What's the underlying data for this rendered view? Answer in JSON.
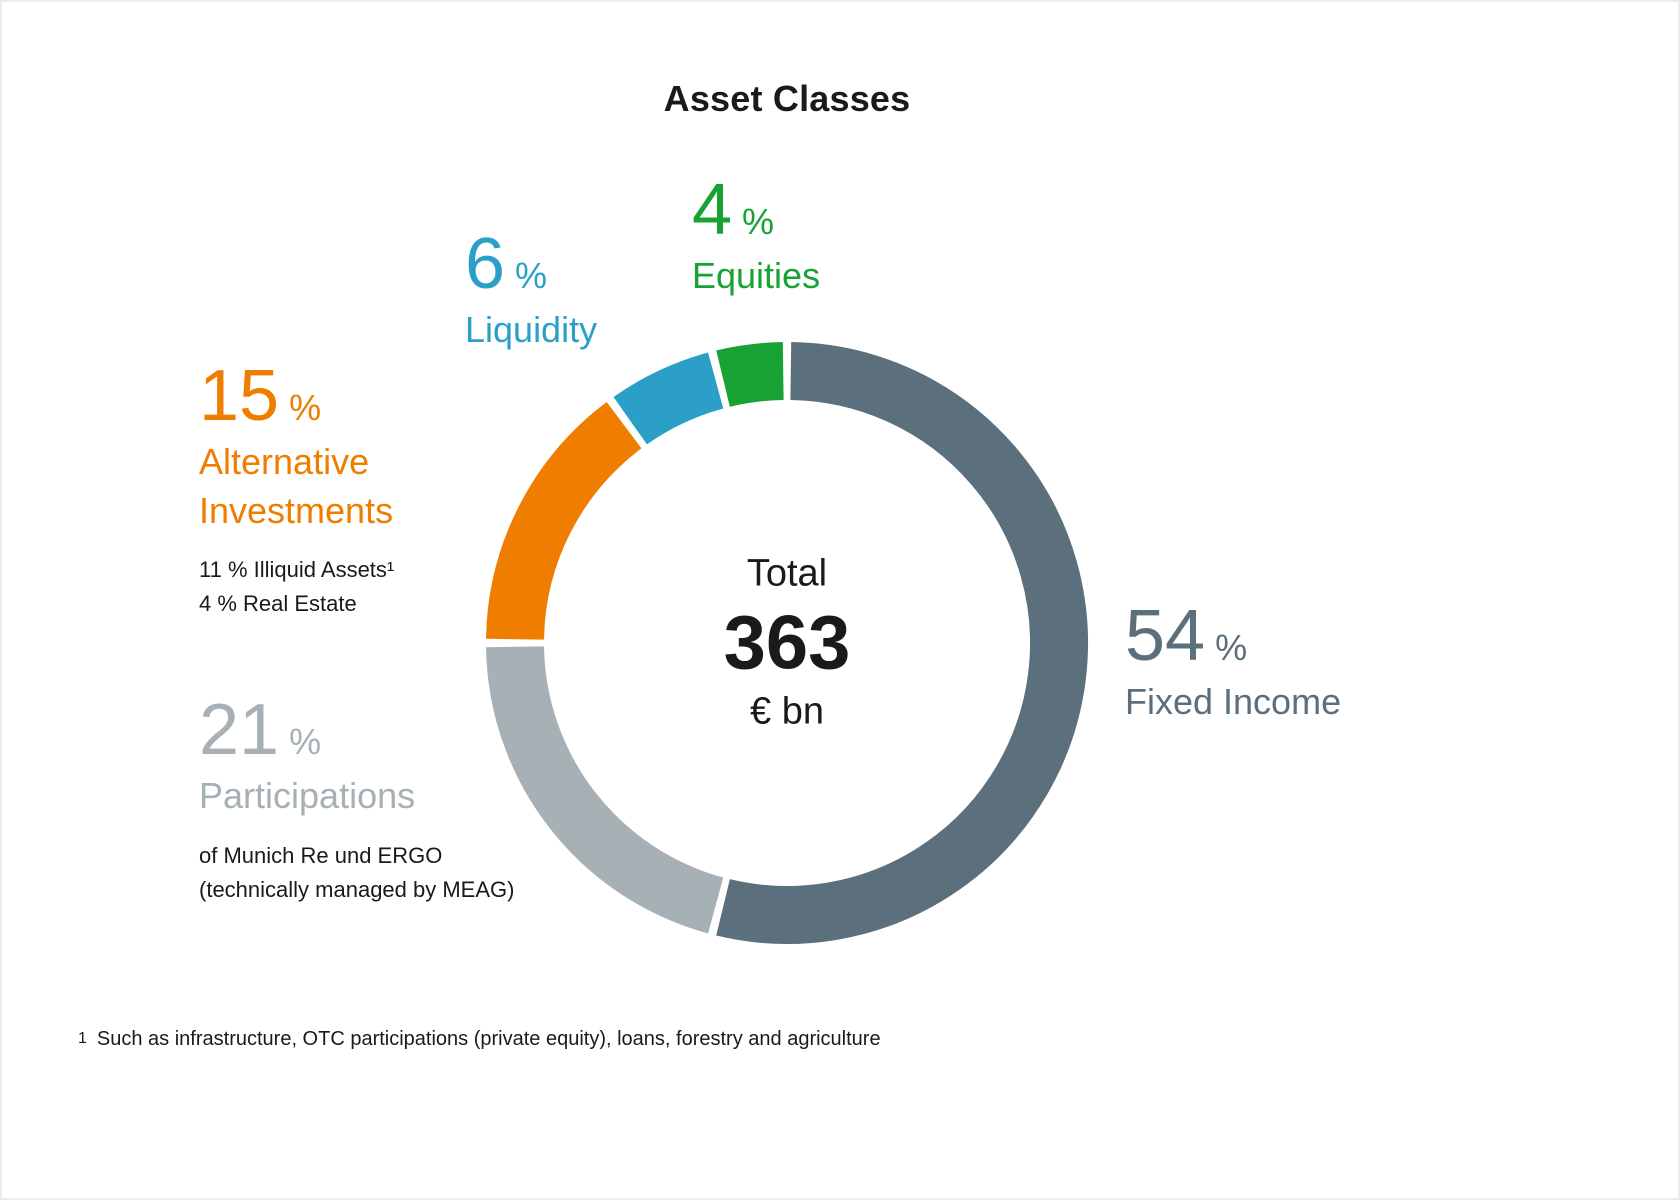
{
  "page": {
    "title": "Asset Classes"
  },
  "annotations": {
    "equities": {
      "value": "4",
      "percent_sign": "%",
      "label": "Equities"
    },
    "liquidity": {
      "value": "6",
      "percent_sign": "%",
      "label": "Liquidity"
    },
    "alternative": {
      "value": "15",
      "percent_sign": "%",
      "label_line1": "Alternative",
      "label_line2": "Investments",
      "sub1": "11 % Illiquid Assets¹",
      "sub2": "4 %  Real Estate"
    },
    "participations": {
      "value": "21",
      "percent_sign": "%",
      "label": "Participations",
      "sub1": "of Munich Re und ERGO",
      "sub2": "(technically managed by MEAG)"
    },
    "fixed_income": {
      "value": "54",
      "percent_sign": "%",
      "label": "Fixed Income"
    }
  },
  "center": {
    "label": "Total",
    "value": "363",
    "unit": "€ bn"
  },
  "footnote": {
    "marker": "1",
    "text": "Such as infrastructure, OTC participations (private equity), loans, forestry and agriculture"
  },
  "chart_data": {
    "type": "pie",
    "variant": "donut",
    "title": "Asset Classes",
    "total_label": "Total",
    "total_value": 363,
    "total_unit": "€ bn",
    "start_angle_deg": 0,
    "direction": "clockwise",
    "units": "percent",
    "segments": [
      {
        "name": "Fixed Income",
        "value_pct": 54,
        "color": "#5c6f7d"
      },
      {
        "name": "Participations",
        "value_pct": 21,
        "color": "#a7b0b5",
        "note": "of Munich Re und ERGO (technically managed by MEAG)"
      },
      {
        "name": "Alternative Investments",
        "value_pct": 15,
        "color": "#ee7d00",
        "breakdown": [
          {
            "name": "Illiquid Assets",
            "value_pct": 11,
            "footnote_ref": "1"
          },
          {
            "name": "Real Estate",
            "value_pct": 4
          }
        ]
      },
      {
        "name": "Liquidity",
        "value_pct": 6,
        "color": "#2b9fc7"
      },
      {
        "name": "Equities",
        "value_pct": 4,
        "color": "#18a233"
      }
    ],
    "footnotes": [
      {
        "marker": "1",
        "text": "Such as infrastructure, OTC participations (private equity), loans, forestry and agriculture"
      }
    ]
  }
}
